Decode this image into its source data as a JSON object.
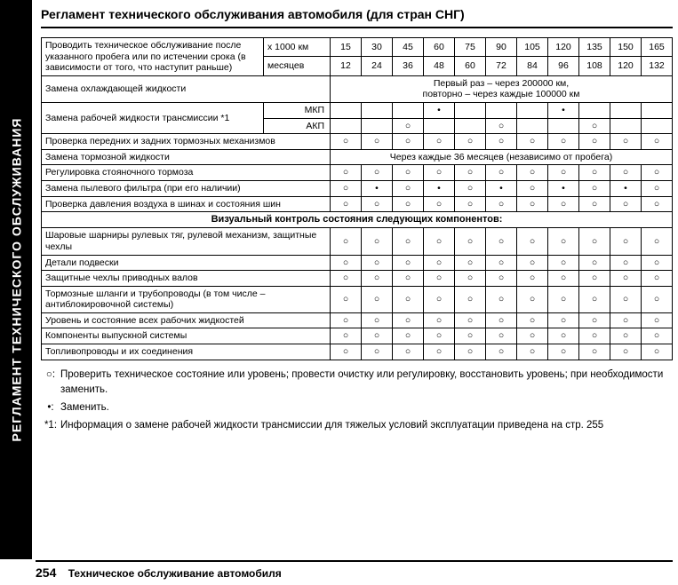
{
  "sidebar": {
    "title": "РЕГЛАМЕНТ ТЕХНИЧЕСКОГО ОБСЛУЖИВАНИЯ"
  },
  "page_title": "Регламент технического обслуживания автомобиля (для стран СНГ)",
  "header_rows": {
    "instruction": "Проводить техническое обслуживание после указанного пробега или по истечении срока (в зависимости от того, что наступит раньше)",
    "row1_label": "х 1000 км",
    "row1_vals": [
      "15",
      "30",
      "45",
      "60",
      "75",
      "90",
      "105",
      "120",
      "135",
      "150",
      "165"
    ],
    "row2_label": "месяцев",
    "row2_vals": [
      "12",
      "24",
      "36",
      "48",
      "60",
      "72",
      "84",
      "96",
      "108",
      "120",
      "132"
    ]
  },
  "rows": [
    {
      "label": "Замена охлаждающей жидкости",
      "span_text": "Первый раз – через 200000 км,\nповторно – через каждые 100000 км"
    },
    {
      "label": "Замена рабочей жидкости трансмиссии *1",
      "sub": "МКП",
      "marks": [
        "",
        "",
        "",
        "•",
        "",
        "",
        "",
        "•",
        "",
        "",
        ""
      ]
    },
    {
      "label_cont": true,
      "sub": "АКП",
      "marks": [
        "",
        "",
        "○",
        "",
        "",
        "○",
        "",
        "",
        "○",
        "",
        ""
      ]
    },
    {
      "label": "Проверка передних и задних тормозных механизмов",
      "marks": [
        "○",
        "○",
        "○",
        "○",
        "○",
        "○",
        "○",
        "○",
        "○",
        "○",
        "○"
      ]
    },
    {
      "label": "Замена тормозной жидкости",
      "span_text": "Через каждые 36 месяцев (независимо от пробега)"
    },
    {
      "label": "Регулировка стояночного тормоза",
      "marks": [
        "○",
        "○",
        "○",
        "○",
        "○",
        "○",
        "○",
        "○",
        "○",
        "○",
        "○"
      ]
    },
    {
      "label": "Замена пылевого фильтра (при его наличии)",
      "marks": [
        "○",
        "•",
        "○",
        "•",
        "○",
        "•",
        "○",
        "•",
        "○",
        "•",
        "○"
      ]
    },
    {
      "label": "Проверка давления воздуха в шинах и состояния шин",
      "marks": [
        "○",
        "○",
        "○",
        "○",
        "○",
        "○",
        "○",
        "○",
        "○",
        "○",
        "○"
      ]
    },
    {
      "section": "Визуальный контроль состояния следующих компонентов:"
    },
    {
      "label": "Шаровые шарниры рулевых тяг, рулевой механизм, защитные чехлы",
      "marks": [
        "○",
        "○",
        "○",
        "○",
        "○",
        "○",
        "○",
        "○",
        "○",
        "○",
        "○"
      ]
    },
    {
      "label": "Детали подвески",
      "marks": [
        "○",
        "○",
        "○",
        "○",
        "○",
        "○",
        "○",
        "○",
        "○",
        "○",
        "○"
      ]
    },
    {
      "label": "Защитные чехлы приводных валов",
      "marks": [
        "○",
        "○",
        "○",
        "○",
        "○",
        "○",
        "○",
        "○",
        "○",
        "○",
        "○"
      ]
    },
    {
      "label": "Тормозные шланги и трубопроводы (в том числе – антиблокировочной системы)",
      "marks": [
        "○",
        "○",
        "○",
        "○",
        "○",
        "○",
        "○",
        "○",
        "○",
        "○",
        "○"
      ]
    },
    {
      "label": "Уровень и состояние всех рабочих жидкостей",
      "marks": [
        "○",
        "○",
        "○",
        "○",
        "○",
        "○",
        "○",
        "○",
        "○",
        "○",
        "○"
      ]
    },
    {
      "label": "Компоненты выпускной системы",
      "marks": [
        "○",
        "○",
        "○",
        "○",
        "○",
        "○",
        "○",
        "○",
        "○",
        "○",
        "○"
      ]
    },
    {
      "label": "Топливопроводы и их соединения",
      "marks": [
        "○",
        "○",
        "○",
        "○",
        "○",
        "○",
        "○",
        "○",
        "○",
        "○",
        "○"
      ]
    }
  ],
  "legend": {
    "circle": "Проверить техническое состояние или уровень; провести очистку или регулировку, восстановить уровень; при необходимости заменить.",
    "dot": "Заменить.",
    "note1": "Информация о замене рабочей жидкости трансмиссии для тяжелых условий эксплуатации приведена на стр. 255"
  },
  "footer": {
    "page": "254",
    "text": "Техническое обслуживание автомобиля"
  },
  "symbols": {
    "circle": "○",
    "dot": "•",
    "note_label": "*1:",
    "circle_label": "○:",
    "dot_label": "•:"
  }
}
